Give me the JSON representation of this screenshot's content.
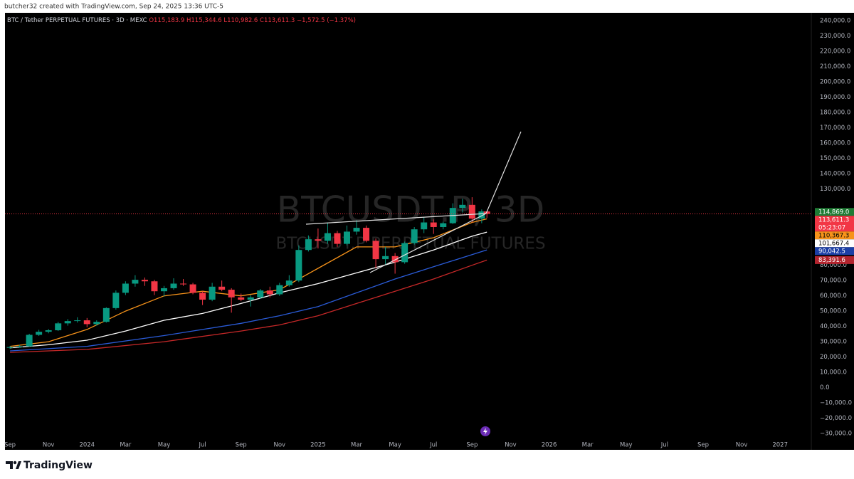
{
  "header": {
    "credit": "butcher32 created with TradingView.com, Sep 24, 2025 13:36 UTC-5"
  },
  "chart_data": {
    "type": "candlestick",
    "symbol": "BTC / Tether PERPETUAL FUTURES · 3D · MEXC",
    "legend_values": [
      "O115,183.9",
      "H115,344.6",
      "L110,982.6",
      "C113,611.3",
      "−1,572.5 (−1.37%)"
    ],
    "watermark": [
      "BTCUSDT.P, 3D",
      "BTCUSDT.P PERPETUAL FUTURES"
    ],
    "up_color": "#089981",
    "down_color": "#f23645",
    "x": [
      0,
      0.5,
      1,
      1.5,
      2,
      2.5,
      3,
      3.5,
      4,
      4.5,
      5,
      5.5,
      6,
      6.5,
      7,
      7.5,
      8,
      8.5,
      9,
      9.5,
      10,
      10.5,
      11,
      11.5,
      12,
      12.5,
      13,
      13.5,
      14,
      14.5,
      15,
      15.5,
      16,
      16.5,
      17,
      17.5,
      18,
      18.5,
      19,
      19.5,
      20,
      20.5,
      21,
      21.5,
      22,
      22.5,
      23,
      23.5,
      24,
      24.5,
      24.77
    ],
    "open": [
      26000,
      26500,
      27000,
      34500,
      36500,
      37500,
      42000,
      43500,
      44000,
      41500,
      43000,
      52000,
      62000,
      68000,
      70500,
      69500,
      63000,
      65000,
      68000,
      67500,
      62000,
      57500,
      66000,
      64000,
      59000,
      57500,
      59000,
      63500,
      61000,
      67000,
      70000,
      90000,
      97000,
      96000,
      101000,
      94000,
      102000,
      104500,
      96000,
      84000,
      86000,
      82000,
      94500,
      103500,
      108000,
      105000,
      107500,
      117500,
      119500,
      110500,
      115183.9
    ],
    "high": [
      27200,
      27800,
      35200,
      37800,
      38300,
      43000,
      44800,
      46000,
      45500,
      44000,
      52500,
      63500,
      69500,
      73500,
      72000,
      70500,
      66500,
      71500,
      71000,
      68500,
      63000,
      68500,
      70000,
      65000,
      61500,
      60500,
      64500,
      66000,
      68500,
      73500,
      93000,
      99500,
      104000,
      108000,
      102500,
      106000,
      109500,
      106000,
      97500,
      92000,
      88000,
      95500,
      105000,
      111500,
      110000,
      108500,
      120500,
      123500,
      124500,
      116500,
      115344.6
    ],
    "low": [
      25300,
      26000,
      26800,
      33800,
      35500,
      37000,
      40500,
      42500,
      39500,
      40500,
      42500,
      51000,
      60500,
      66000,
      66500,
      60500,
      59500,
      64000,
      66500,
      61000,
      54000,
      56500,
      63000,
      49000,
      56500,
      53000,
      58000,
      59000,
      60000,
      66000,
      69000,
      89000,
      91000,
      94000,
      92000,
      93000,
      100000,
      95000,
      78000,
      80000,
      74500,
      81000,
      93500,
      101000,
      100500,
      103500,
      107000,
      114500,
      108000,
      107500,
      110982.6
    ],
    "close": [
      26500,
      27000,
      34500,
      36500,
      37500,
      42000,
      43500,
      44000,
      41500,
      43000,
      52000,
      62000,
      68000,
      70500,
      69500,
      63000,
      65000,
      68000,
      67500,
      62000,
      57500,
      66000,
      64000,
      59000,
      57500,
      59000,
      63500,
      61000,
      67000,
      70000,
      90000,
      97000,
      96000,
      101000,
      94000,
      102000,
      104500,
      96000,
      84000,
      86000,
      82000,
      94500,
      103500,
      108000,
      105000,
      107500,
      117500,
      119500,
      110500,
      115183.9,
      113611.3
    ],
    "lines": [
      {
        "color": "#f7931a",
        "x": [
          0,
          2,
          4,
          6,
          8,
          10,
          12,
          14,
          16,
          18,
          20,
          22,
          24,
          24.77
        ],
        "values": [
          27000,
          30000,
          38000,
          50000,
          60000,
          63000,
          60000,
          64000,
          78000,
          92000,
          92000,
          98000,
          108000,
          110367.3
        ]
      },
      {
        "color": "#ffffff",
        "x": [
          0,
          2,
          4,
          6,
          8,
          10,
          12,
          14,
          16,
          18,
          20,
          22,
          24,
          24.77
        ],
        "values": [
          26000,
          28000,
          31000,
          37000,
          44000,
          48500,
          55000,
          62000,
          68000,
          75000,
          82000,
          90000,
          99000,
          101667.4
        ]
      },
      {
        "color": "#2a5bd7",
        "x": [
          0,
          4,
          8,
          12,
          14,
          16,
          18,
          20,
          22,
          24,
          24.77
        ],
        "values": [
          24000,
          27000,
          34000,
          42000,
          47000,
          53000,
          62000,
          71000,
          79000,
          87000,
          90042.5
        ]
      },
      {
        "color": "#c62828",
        "x": [
          0,
          4,
          8,
          12,
          14,
          16,
          18,
          20,
          22,
          24,
          24.77
        ],
        "values": [
          23000,
          25000,
          30000,
          37000,
          41000,
          47000,
          55000,
          63000,
          71000,
          80000,
          83391.6
        ]
      }
    ],
    "price_labels": [
      {
        "value": 114869.0,
        "label": "114,869.0",
        "color": "#1e7b34",
        "text_color": "#ffffff"
      },
      {
        "value": 113611.3,
        "label": "113,611.3",
        "color": "#f23645",
        "text_color": "#ffffff"
      },
      {
        "value": 110367.3,
        "label": "110,367.3",
        "color": "#f7931a",
        "text_color": "#000000"
      },
      {
        "value": 101667.4,
        "label": "101,667.4",
        "color": "#ffffff",
        "text_color": "#000000"
      },
      {
        "value": 90042.5,
        "label": "90,042.5",
        "color": "#1c3fa6",
        "text_color": "#ffffff"
      },
      {
        "value": 83391.6,
        "label": "83,391.6",
        "color": "#b3242e",
        "text_color": "#ffffff"
      }
    ],
    "countdown": "05:23:07",
    "xlim": [
      -0.52,
      41.62
    ],
    "xticks": [
      {
        "value": 0,
        "label": "Sep"
      },
      {
        "value": 2,
        "label": "Nov"
      },
      {
        "value": 4,
        "label": "2024"
      },
      {
        "value": 6,
        "label": "Mar"
      },
      {
        "value": 8,
        "label": "May"
      },
      {
        "value": 10,
        "label": "Jul"
      },
      {
        "value": 12,
        "label": "Sep"
      },
      {
        "value": 14,
        "label": "Nov"
      },
      {
        "value": 16,
        "label": "2025"
      },
      {
        "value": 18,
        "label": "Mar"
      },
      {
        "value": 20,
        "label": "May"
      },
      {
        "value": 22,
        "label": "Jul"
      },
      {
        "value": 24,
        "label": "Sep"
      },
      {
        "value": 26,
        "label": "Nov"
      },
      {
        "value": 28,
        "label": "2026"
      },
      {
        "value": 30,
        "label": "Mar"
      },
      {
        "value": 32,
        "label": "May"
      },
      {
        "value": 34,
        "label": "Jul"
      },
      {
        "value": 36,
        "label": "Sep"
      },
      {
        "value": 38,
        "label": "Nov"
      },
      {
        "value": 40,
        "label": "2027"
      }
    ],
    "ylim": [
      -40700,
      245100
    ],
    "yticks": [
      {
        "value": 240000,
        "label": "240,000.0"
      },
      {
        "value": 230000,
        "label": "230,000.0"
      },
      {
        "value": 220000,
        "label": "220,000.0"
      },
      {
        "value": 210000,
        "label": "210,000.0"
      },
      {
        "value": 200000,
        "label": "200,000.0"
      },
      {
        "value": 190000,
        "label": "190,000.0"
      },
      {
        "value": 180000,
        "label": "180,000.0"
      },
      {
        "value": 170000,
        "label": "170,000.0"
      },
      {
        "value": 160000,
        "label": "160,000.0"
      },
      {
        "value": 150000,
        "label": "150,000.0"
      },
      {
        "value": 140000,
        "label": "140,000.0"
      },
      {
        "value": 130000,
        "label": "130,000.0"
      },
      {
        "value": 80000,
        "label": "80,000.0"
      },
      {
        "value": 70000,
        "label": "70,000.0"
      },
      {
        "value": 60000,
        "label": "60,000.0"
      },
      {
        "value": 50000,
        "label": "50,000.0"
      },
      {
        "value": 40000,
        "label": "40,000.0"
      },
      {
        "value": 30000,
        "label": "30,000.0"
      },
      {
        "value": 20000,
        "label": "20,000.0"
      },
      {
        "value": 10000,
        "label": "10,000.0"
      },
      {
        "value": 0,
        "label": "0.0"
      },
      {
        "value": -10000,
        "label": "−10,000.0"
      },
      {
        "value": -20000,
        "label": "−20,000.0"
      },
      {
        "value": -30000,
        "label": "−30,000.0"
      }
    ]
  },
  "footer": {
    "brand": "TradingView"
  }
}
